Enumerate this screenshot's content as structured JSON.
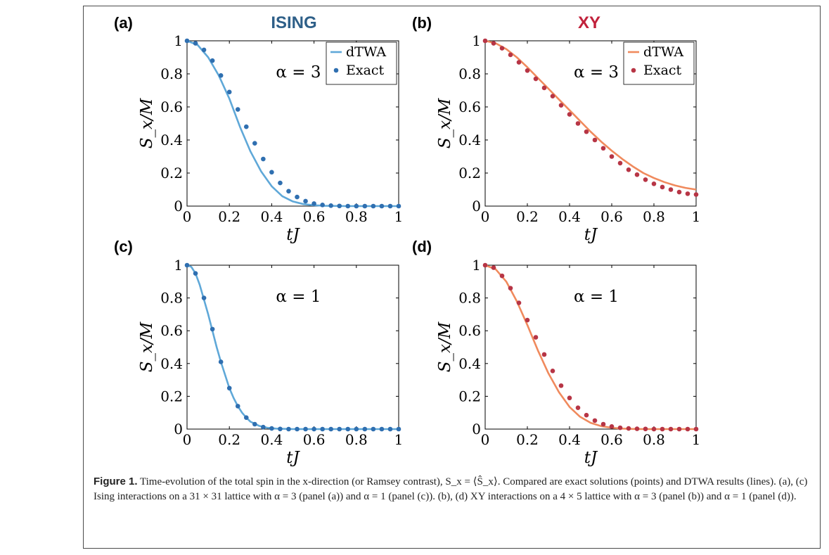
{
  "titles": {
    "left": "ISING",
    "right": "XY"
  },
  "colors": {
    "ising": "#2e5f88",
    "xy": "#c1213b",
    "ising_line": "#5fa8d8",
    "ising_point": "#2f6fb0",
    "xy_line": "#f08a5d",
    "xy_point": "#b73545"
  },
  "caption": {
    "label": "Figure 1.",
    "text": " Time-evolution of the total spin in the x-direction (or Ramsey contrast), S_x = ⟨Ŝ_x⟩. Compared are exact solutions (points) and DTWA results (lines). (a), (c) Ising interactions on a 31 × 31 lattice with α = 3 (panel (a)) and α = 1 (panel (c)). (b), (d) XY interactions on a 4 × 5 lattice with α = 3 (panel (b)) and α = 1 (panel (d))."
  },
  "chart_data": [
    {
      "type": "line",
      "panel": "(a)",
      "annotation": "α = 3",
      "xlabel": "tJ",
      "ylabel": "S_x/M",
      "xlim": [
        0,
        1
      ],
      "ylim": [
        0,
        1
      ],
      "xticks": [
        "0",
        "0.2",
        "0.4",
        "0.6",
        "0.8",
        "1"
      ],
      "yticks": [
        "0",
        "0.2",
        "0.4",
        "0.6",
        "0.8",
        "1"
      ],
      "legend": "top-right",
      "series": [
        {
          "name": "dTWA",
          "kind": "line",
          "x": [
            0,
            0.05,
            0.1,
            0.15,
            0.2,
            0.25,
            0.3,
            0.35,
            0.4,
            0.45,
            0.5,
            0.55,
            0.6,
            0.65,
            0.7,
            0.75,
            0.8,
            0.85,
            0.9,
            0.95,
            1.0
          ],
          "y": [
            1.0,
            0.975,
            0.9,
            0.79,
            0.65,
            0.48,
            0.33,
            0.21,
            0.12,
            0.06,
            0.028,
            0.012,
            0.005,
            0.002,
            0.001,
            0,
            0,
            0,
            0,
            0,
            0
          ]
        },
        {
          "name": "Exact",
          "kind": "points",
          "x": [
            0,
            0.04,
            0.08,
            0.12,
            0.16,
            0.2,
            0.24,
            0.28,
            0.32,
            0.36,
            0.4,
            0.44,
            0.48,
            0.52,
            0.56,
            0.6,
            0.64,
            0.68,
            0.72,
            0.76,
            0.8,
            0.84,
            0.88,
            0.92,
            0.96,
            1.0
          ],
          "y": [
            1.0,
            0.985,
            0.945,
            0.88,
            0.79,
            0.69,
            0.585,
            0.48,
            0.38,
            0.285,
            0.205,
            0.14,
            0.09,
            0.055,
            0.03,
            0.015,
            0.007,
            0.003,
            0.001,
            0,
            0,
            0,
            0,
            0,
            0,
            0
          ]
        }
      ]
    },
    {
      "type": "line",
      "panel": "(b)",
      "annotation": "α = 3",
      "xlabel": "tJ",
      "ylabel": "S_x/M",
      "xlim": [
        0,
        1
      ],
      "ylim": [
        0,
        1
      ],
      "xticks": [
        "0",
        "0.2",
        "0.4",
        "0.6",
        "0.8",
        "1"
      ],
      "yticks": [
        "0",
        "0.2",
        "0.4",
        "0.6",
        "0.8",
        "1"
      ],
      "legend": "top-right",
      "series": [
        {
          "name": "dTWA",
          "kind": "line",
          "x": [
            0,
            0.05,
            0.1,
            0.15,
            0.2,
            0.25,
            0.3,
            0.35,
            0.4,
            0.45,
            0.5,
            0.55,
            0.6,
            0.65,
            0.7,
            0.75,
            0.8,
            0.85,
            0.9,
            0.95,
            1.0
          ],
          "y": [
            1.0,
            0.985,
            0.95,
            0.9,
            0.84,
            0.775,
            0.71,
            0.645,
            0.58,
            0.515,
            0.45,
            0.39,
            0.335,
            0.285,
            0.24,
            0.2,
            0.17,
            0.145,
            0.125,
            0.11,
            0.1
          ]
        },
        {
          "name": "Exact",
          "kind": "points",
          "x": [
            0,
            0.04,
            0.08,
            0.12,
            0.16,
            0.2,
            0.24,
            0.28,
            0.32,
            0.36,
            0.4,
            0.44,
            0.48,
            0.52,
            0.56,
            0.6,
            0.64,
            0.68,
            0.72,
            0.76,
            0.8,
            0.84,
            0.88,
            0.92,
            0.96,
            1.0
          ],
          "y": [
            1.0,
            0.985,
            0.955,
            0.915,
            0.87,
            0.82,
            0.77,
            0.715,
            0.665,
            0.61,
            0.555,
            0.5,
            0.45,
            0.4,
            0.35,
            0.3,
            0.26,
            0.22,
            0.19,
            0.16,
            0.135,
            0.115,
            0.1,
            0.085,
            0.075,
            0.07
          ]
        }
      ]
    },
    {
      "type": "line",
      "panel": "(c)",
      "annotation": "α = 1",
      "xlabel": "tJ",
      "ylabel": "S_x/M",
      "xlim": [
        0,
        1
      ],
      "ylim": [
        0,
        1
      ],
      "xticks": [
        "0",
        "0.2",
        "0.4",
        "0.6",
        "0.8",
        "1"
      ],
      "yticks": [
        "0",
        "0.2",
        "0.4",
        "0.6",
        "0.8",
        "1"
      ],
      "series": [
        {
          "name": "dTWA",
          "kind": "line",
          "x": [
            0,
            0.02,
            0.04,
            0.06,
            0.08,
            0.1,
            0.12,
            0.14,
            0.16,
            0.18,
            0.2,
            0.22,
            0.24,
            0.26,
            0.28,
            0.3,
            0.34,
            0.38,
            0.42,
            0.5,
            0.6,
            0.7,
            0.8,
            0.9,
            1.0
          ],
          "y": [
            1.0,
            0.99,
            0.95,
            0.88,
            0.79,
            0.7,
            0.6,
            0.5,
            0.41,
            0.33,
            0.25,
            0.19,
            0.14,
            0.1,
            0.07,
            0.045,
            0.02,
            0.008,
            0.003,
            0,
            0,
            0,
            0,
            0,
            0
          ]
        },
        {
          "name": "Exact",
          "kind": "points",
          "x": [
            0,
            0.04,
            0.08,
            0.12,
            0.16,
            0.2,
            0.24,
            0.28,
            0.32,
            0.36,
            0.4,
            0.44,
            0.48,
            0.52,
            0.56,
            0.6,
            0.64,
            0.68,
            0.72,
            0.76,
            0.8,
            0.84,
            0.88,
            0.92,
            0.96,
            1.0
          ],
          "y": [
            1.0,
            0.95,
            0.8,
            0.61,
            0.41,
            0.25,
            0.14,
            0.07,
            0.03,
            0.012,
            0.004,
            0.001,
            0,
            0,
            0,
            0,
            0,
            0,
            0,
            0,
            0,
            0,
            0,
            0,
            0,
            0
          ]
        }
      ]
    },
    {
      "type": "line",
      "panel": "(d)",
      "annotation": "α = 1",
      "xlabel": "tJ",
      "ylabel": "S_x/M",
      "xlim": [
        0,
        1
      ],
      "ylim": [
        0,
        1
      ],
      "xticks": [
        "0",
        "0.2",
        "0.4",
        "0.6",
        "0.8",
        "1"
      ],
      "yticks": [
        "0",
        "0.2",
        "0.4",
        "0.6",
        "0.8",
        "1"
      ],
      "series": [
        {
          "name": "dTWA",
          "kind": "line",
          "x": [
            0,
            0.05,
            0.1,
            0.15,
            0.2,
            0.25,
            0.3,
            0.35,
            0.4,
            0.45,
            0.5,
            0.55,
            0.6,
            0.65,
            0.7,
            0.75,
            0.8,
            0.85,
            0.9,
            0.95,
            1.0
          ],
          "y": [
            1.0,
            0.975,
            0.9,
            0.78,
            0.635,
            0.48,
            0.34,
            0.225,
            0.135,
            0.075,
            0.038,
            0.018,
            0.008,
            0.003,
            0.001,
            0,
            0,
            0,
            0,
            0,
            0
          ]
        },
        {
          "name": "Exact",
          "kind": "points",
          "x": [
            0,
            0.04,
            0.08,
            0.12,
            0.16,
            0.2,
            0.24,
            0.28,
            0.32,
            0.36,
            0.4,
            0.44,
            0.48,
            0.52,
            0.56,
            0.6,
            0.64,
            0.68,
            0.72,
            0.76,
            0.8,
            0.84,
            0.88,
            0.92,
            0.96,
            1.0
          ],
          "y": [
            1.0,
            0.985,
            0.935,
            0.86,
            0.77,
            0.665,
            0.56,
            0.455,
            0.355,
            0.265,
            0.19,
            0.13,
            0.085,
            0.052,
            0.03,
            0.016,
            0.008,
            0.004,
            0.002,
            0.001,
            0,
            0,
            0,
            0,
            0,
            0
          ]
        }
      ]
    }
  ]
}
